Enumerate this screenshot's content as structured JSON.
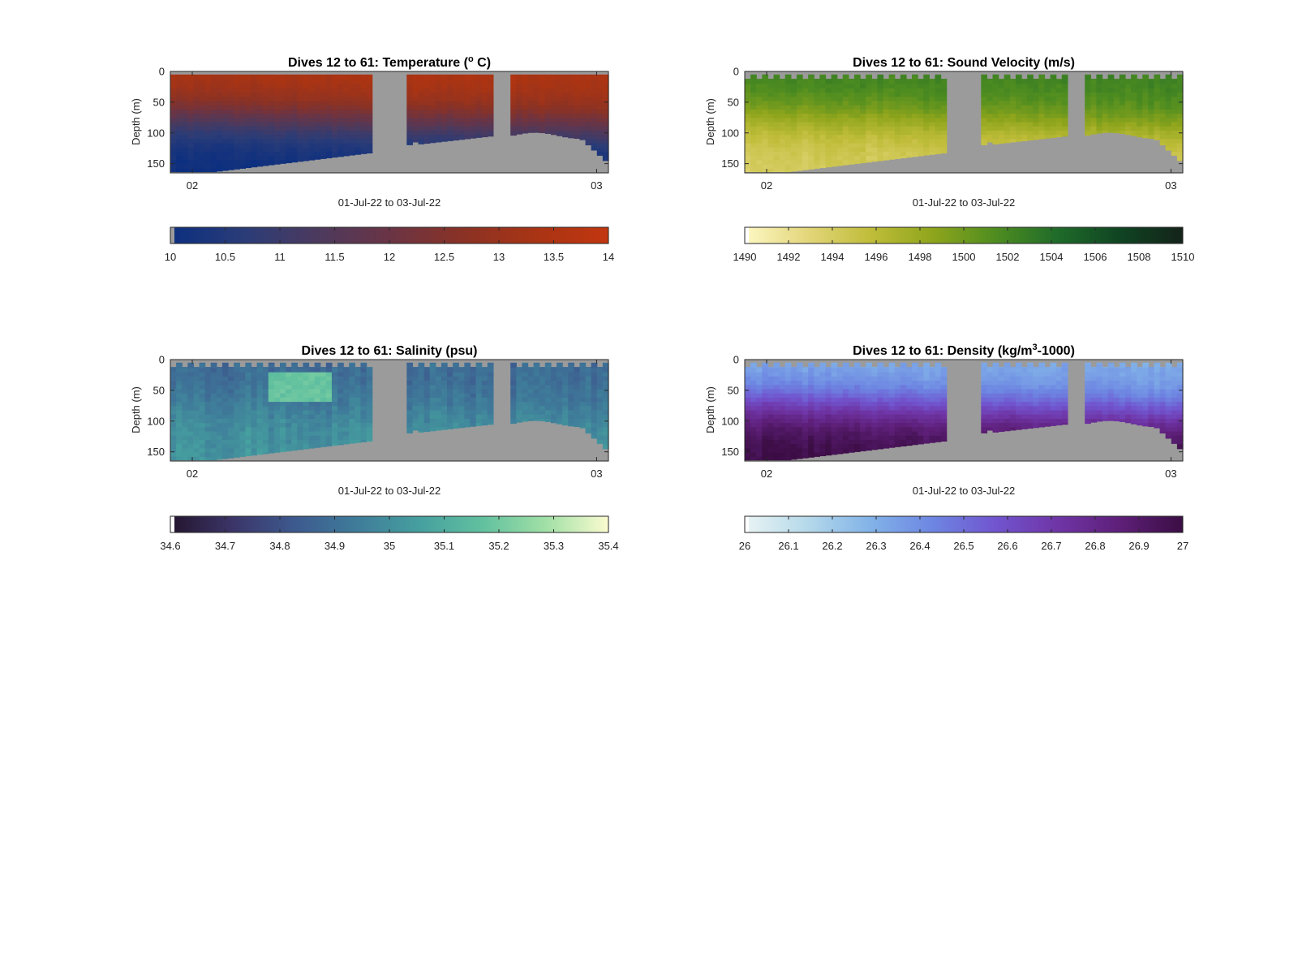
{
  "figure": {
    "background": "#ffffff",
    "no_data_color": "#9b9b9b"
  },
  "chart_data": [
    {
      "type": "heatmap",
      "id": "temperature",
      "title_prefix": "Dives 12 to 61: Temperature (",
      "title_sup": "o",
      "title_suffix": " C)",
      "xlabel": "01-Jul-22 to 03-Jul-22",
      "ylabel": "Depth (m)",
      "ylim": [
        0,
        165
      ],
      "yticks": [
        0,
        50,
        100,
        150
      ],
      "xticks": [
        "02",
        "03"
      ],
      "colorbar": {
        "min": 10,
        "max": 14,
        "ticks": [
          "10",
          "10.5",
          "11",
          "11.5",
          "12",
          "12.5",
          "13",
          "13.5",
          "14"
        ],
        "colors": [
          "#0c2f7f",
          "#2a3c78",
          "#4b3a5e",
          "#6a3445",
          "#8a3225",
          "#a83414",
          "#c23610"
        ]
      },
      "surface": 13.5,
      "bottom": 10.0,
      "noise": 0.15,
      "patch": null
    },
    {
      "type": "heatmap",
      "id": "sound_velocity",
      "title_prefix": "Dives 12 to 61: Sound Velocity (m/s)",
      "title_sup": "",
      "title_suffix": "",
      "xlabel": "01-Jul-22 to 03-Jul-22",
      "ylabel": "Depth (m)",
      "ylim": [
        0,
        165
      ],
      "yticks": [
        0,
        50,
        100,
        150
      ],
      "xticks": [
        "02",
        "03"
      ],
      "colorbar": {
        "min": 1490,
        "max": 1510,
        "ticks": [
          "1490",
          "1492",
          "1494",
          "1496",
          "1498",
          "1500",
          "1502",
          "1504",
          "1506",
          "1508",
          "1510"
        ],
        "colors": [
          "#fdf8c4",
          "#e3d67b",
          "#c0bd3a",
          "#8fa51c",
          "#4f8d20",
          "#1f6b2a",
          "#0f4422",
          "#14231a"
        ]
      },
      "surface": 1502.5,
      "bottom": 1494.0,
      "noise": 0.7,
      "patch": null
    },
    {
      "type": "heatmap",
      "id": "salinity",
      "title_prefix": "Dives 12 to 61: Salinity (psu)",
      "title_sup": "",
      "title_suffix": "",
      "xlabel": "01-Jul-22 to 03-Jul-22",
      "ylabel": "Depth (m)",
      "ylim": [
        0,
        165
      ],
      "yticks": [
        0,
        50,
        100,
        150
      ],
      "xticks": [
        "02",
        "03"
      ],
      "colorbar": {
        "min": 34.6,
        "max": 35.4,
        "ticks": [
          "34.6",
          "34.7",
          "34.8",
          "34.9",
          "35",
          "35.1",
          "35.2",
          "35.3",
          "35.4"
        ],
        "colors": [
          "#24152e",
          "#3b3568",
          "#3d5a8f",
          "#3f7d9a",
          "#46a09f",
          "#62c19f",
          "#a1e0a6",
          "#fbfbd0"
        ]
      },
      "surface": 34.88,
      "bottom": 35.02,
      "noise": 0.05,
      "patch": {
        "col_from": 17,
        "col_to": 27,
        "depth_from": 15,
        "depth_to": 75,
        "value": 35.18
      }
    },
    {
      "type": "heatmap",
      "id": "density",
      "title_prefix": "Dives 12 to 61: Density (kg/m",
      "title_sup": "3",
      "title_suffix": "-1000)",
      "xlabel": "01-Jul-22 to 03-Jul-22",
      "ylabel": "Depth (m)",
      "ylim": [
        0,
        165
      ],
      "yticks": [
        0,
        50,
        100,
        150
      ],
      "xticks": [
        "02",
        "03"
      ],
      "colorbar": {
        "min": 26,
        "max": 27,
        "ticks": [
          "26",
          "26.1",
          "26.2",
          "26.3",
          "26.4",
          "26.5",
          "26.6",
          "26.7",
          "26.8",
          "26.9",
          "27"
        ],
        "colors": [
          "#eaf4f4",
          "#b5d9ea",
          "#82b3e8",
          "#6d86e2",
          "#7155cf",
          "#6f35a6",
          "#5d1f78",
          "#3b0d44"
        ]
      },
      "surface": 26.3,
      "bottom": 27.0,
      "noise": 0.04,
      "patch": null
    }
  ]
}
